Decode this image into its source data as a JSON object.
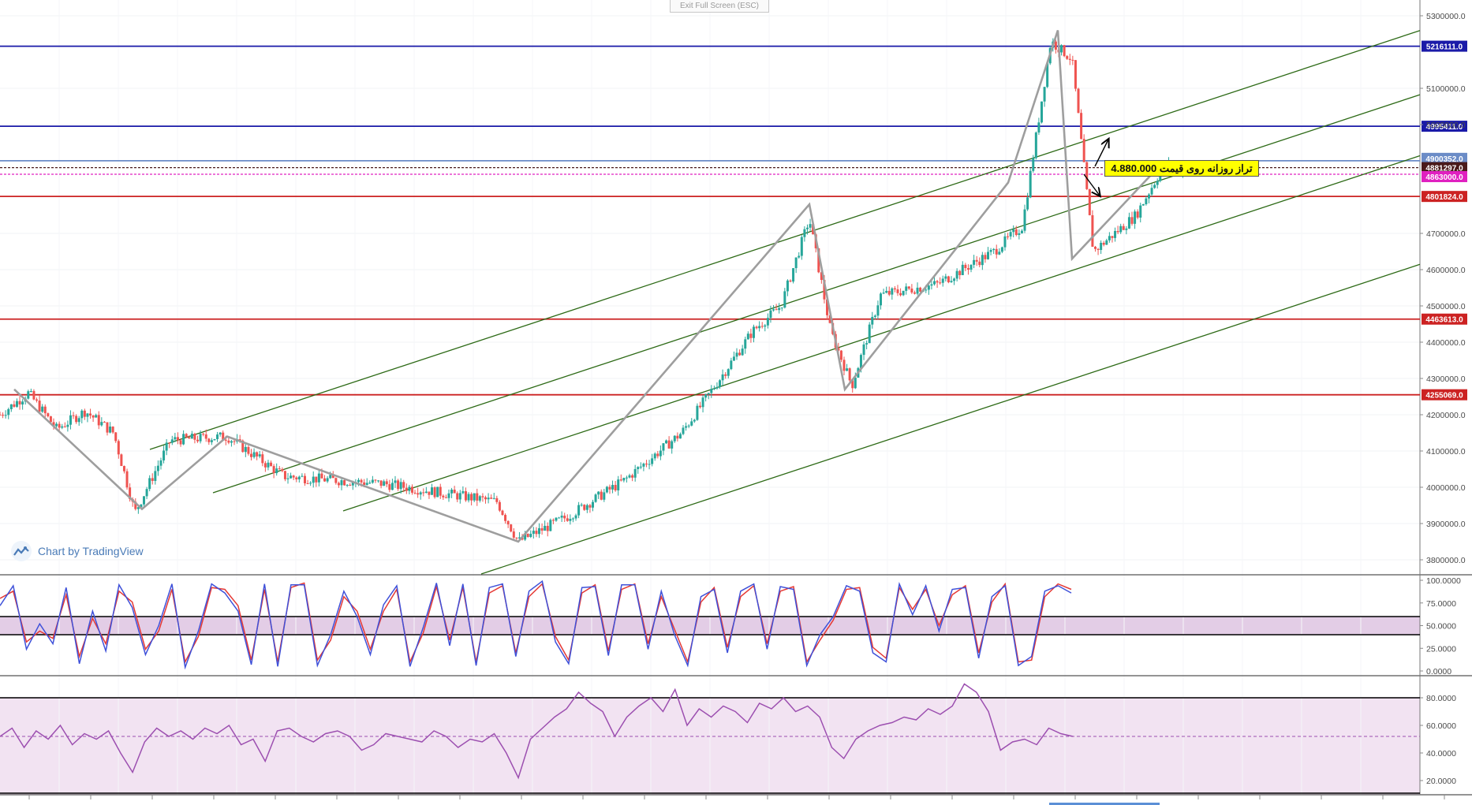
{
  "toolbar": {
    "exit_full_screen": "Exit Full Screen (ESC)"
  },
  "branding": {
    "text": "Chart by TradingView"
  },
  "colors": {
    "up": "#26a69a",
    "down": "#ef5350",
    "channel": "#2d6a16",
    "zigzag": "#9e9e9e",
    "stoch_k": "#3f51d9",
    "stoch_d": "#e53935",
    "rsi": "#9c4fb0"
  },
  "annotation": {
    "text": "تراز روزانه روی قیمت 4.880.000"
  },
  "chart_data": [
    {
      "type": "candlestick",
      "title": "",
      "ylim": [
        3750000,
        5330000
      ],
      "y_ticks": [
        "5300000.0",
        "5100000.0",
        "5000000.0",
        "4700000.0",
        "4600000.0",
        "4500000.0",
        "4400000.0",
        "4300000.0",
        "4200000.0",
        "4100000.0",
        "4000000.0",
        "3900000.0",
        "3800000.0"
      ],
      "price_path": [
        {
          "t": 0,
          "v": 4200000
        },
        {
          "t": 0.02,
          "v": 4260000
        },
        {
          "t": 0.04,
          "v": 4160000
        },
        {
          "t": 0.06,
          "v": 4210000
        },
        {
          "t": 0.08,
          "v": 4150000
        },
        {
          "t": 0.095,
          "v": 3930000
        },
        {
          "t": 0.12,
          "v": 4130000
        },
        {
          "t": 0.16,
          "v": 4140000
        },
        {
          "t": 0.2,
          "v": 4030000
        },
        {
          "t": 0.27,
          "v": 4010000
        },
        {
          "t": 0.35,
          "v": 3960000
        },
        {
          "t": 0.365,
          "v": 3850000
        },
        {
          "t": 0.4,
          "v": 3920000
        },
        {
          "t": 0.44,
          "v": 4020000
        },
        {
          "t": 0.48,
          "v": 4150000
        },
        {
          "t": 0.5,
          "v": 4260000
        },
        {
          "t": 0.53,
          "v": 4430000
        },
        {
          "t": 0.55,
          "v": 4500000
        },
        {
          "t": 0.57,
          "v": 4740000
        },
        {
          "t": 0.585,
          "v": 4430000
        },
        {
          "t": 0.6,
          "v": 4280000
        },
        {
          "t": 0.62,
          "v": 4530000
        },
        {
          "t": 0.66,
          "v": 4560000
        },
        {
          "t": 0.7,
          "v": 4650000
        },
        {
          "t": 0.72,
          "v": 4720000
        },
        {
          "t": 0.74,
          "v": 5230000
        },
        {
          "t": 0.755,
          "v": 5180000
        },
        {
          "t": 0.77,
          "v": 4650000
        },
        {
          "t": 0.8,
          "v": 4750000
        },
        {
          "t": 0.82,
          "v": 4890000
        },
        {
          "t": 0.835,
          "v": 4870000
        }
      ],
      "horizontal_levels": [
        {
          "label": "5216111.0",
          "value": 5216111,
          "color": "#1a1aa8"
        },
        {
          "label": "4995411.0",
          "value": 4995411,
          "color": "#1a1aa8"
        },
        {
          "label": "4900352.0",
          "value": 4900352,
          "color": "#6b8cc7"
        },
        {
          "label": "4881297.0",
          "value": 4881297,
          "color": "#4a1a1a"
        },
        {
          "label": "4863000.0",
          "value": 4863000,
          "color": "#e020c0"
        },
        {
          "label": "4801824.0",
          "value": 4801824,
          "color": "#cc2222"
        },
        {
          "label": "4463613.0",
          "value": 4463613,
          "color": "#cc2222"
        },
        {
          "label": "4255069.0",
          "value": 4255069,
          "color": "#cc2222"
        }
      ],
      "zigzag": [
        {
          "t": 0.01,
          "v": 4270000
        },
        {
          "t": 0.1,
          "v": 3940000
        },
        {
          "t": 0.16,
          "v": 4140000
        },
        {
          "t": 0.365,
          "v": 3850000
        },
        {
          "t": 0.57,
          "v": 4780000
        },
        {
          "t": 0.595,
          "v": 4270000
        },
        {
          "t": 0.71,
          "v": 4840000
        },
        {
          "t": 0.71,
          "v": 4840000
        },
        {
          "t": 0.745,
          "v": 5260000
        },
        {
          "t": 0.755,
          "v": 4630000
        },
        {
          "t": 0.82,
          "v": 4900000
        }
      ]
    },
    {
      "type": "line",
      "title": "",
      "ylim": [
        0,
        100
      ],
      "y_ticks": [
        "100.0000",
        "75.0000",
        "50.0000",
        "25.0000",
        "0.0000"
      ],
      "bands": [
        40,
        60
      ],
      "series": [
        {
          "values": [
            72,
            94,
            24,
            52,
            30,
            92,
            8,
            66,
            22,
            95,
            70,
            18,
            50,
            96,
            4,
            44,
            96,
            86,
            66,
            7,
            96,
            5,
            95,
            95,
            6,
            40,
            88,
            60,
            18,
            73,
            94,
            5,
            48,
            97,
            28,
            96,
            6,
            92,
            96,
            16,
            88,
            99,
            32,
            8,
            92,
            93,
            17,
            95,
            95,
            24,
            88,
            40,
            6,
            82,
            90,
            20,
            88,
            96,
            24,
            93,
            90,
            6,
            40,
            60,
            94,
            88,
            20,
            10,
            96,
            62,
            94,
            44,
            90,
            92,
            14,
            82,
            94,
            6,
            16,
            88,
            94,
            86
          ]
        },
        {
          "values": [
            80,
            88,
            32,
            44,
            36,
            84,
            16,
            58,
            30,
            88,
            76,
            24,
            44,
            90,
            10,
            38,
            92,
            90,
            72,
            12,
            90,
            10,
            92,
            97,
            12,
            34,
            82,
            66,
            24,
            66,
            90,
            10,
            42,
            93,
            34,
            92,
            10,
            86,
            94,
            20,
            82,
            96,
            38,
            12,
            86,
            95,
            22,
            90,
            96,
            30,
            82,
            46,
            10,
            76,
            92,
            26,
            82,
            94,
            30,
            88,
            93,
            10,
            34,
            56,
            90,
            92,
            26,
            14,
            92,
            68,
            90,
            50,
            84,
            94,
            20,
            76,
            96,
            10,
            12,
            82,
            96,
            90
          ]
        }
      ]
    },
    {
      "type": "line",
      "title": "",
      "ylim": [
        10,
        90
      ],
      "y_ticks": [
        "80.0000",
        "60.0000",
        "40.0000",
        "20.0000"
      ],
      "bands": [
        80,
        52
      ],
      "series": [
        {
          "values": [
            52,
            58,
            44,
            56,
            50,
            60,
            46,
            54,
            50,
            56,
            40,
            26,
            48,
            58,
            52,
            56,
            50,
            58,
            54,
            60,
            46,
            50,
            34,
            56,
            58,
            52,
            48,
            54,
            56,
            52,
            42,
            46,
            54,
            52,
            50,
            48,
            56,
            52,
            44,
            50,
            48,
            54,
            40,
            22,
            50,
            58,
            66,
            72,
            84,
            76,
            70,
            52,
            66,
            74,
            80,
            70,
            86,
            60,
            72,
            66,
            74,
            70,
            62,
            76,
            72,
            80,
            70,
            74,
            66,
            44,
            36,
            50,
            56,
            60,
            62,
            66,
            64,
            72,
            68,
            74,
            90,
            84,
            70,
            42,
            48,
            50,
            46,
            58,
            54,
            52
          ]
        }
      ]
    }
  ]
}
